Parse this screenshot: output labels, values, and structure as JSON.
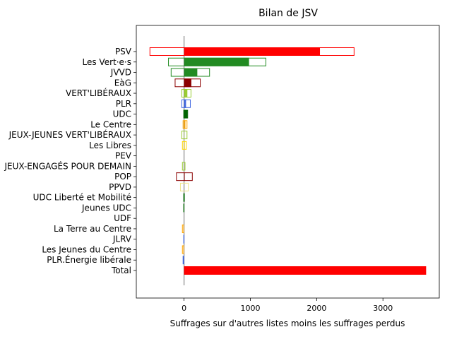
{
  "chart_data": {
    "type": "bar",
    "title": "Bilan de JSV",
    "xlabel": "Suffrages sur d'autres listes moins les suffrages perdus",
    "ylabel": "",
    "xlim": [
      -720,
      3850
    ],
    "x_ticks": [
      0,
      1000,
      2000,
      3000
    ],
    "grid": false,
    "categories": [
      {
        "name": "PSV",
        "color": "#ff0000",
        "filled": 2050,
        "outline_left": -520,
        "outline_right": 2570
      },
      {
        "name": "Les Vert·e·s",
        "color": "#228b22",
        "filled": 980,
        "outline_left": -240,
        "outline_right": 1240
      },
      {
        "name": "JVVD",
        "color": "#228b22",
        "filled": 200,
        "outline_left": -200,
        "outline_right": 390
      },
      {
        "name": "EàG",
        "color": "#8b0000",
        "filled": 110,
        "outline_left": -140,
        "outline_right": 250
      },
      {
        "name": "VERT'LIBÉRAUX",
        "color": "#9acd32",
        "filled": 50,
        "outline_left": -40,
        "outline_right": 110
      },
      {
        "name": "PLR",
        "color": "#4169e1",
        "filled": 30,
        "outline_left": -40,
        "outline_right": 100
      },
      {
        "name": "UDC",
        "color": "#006400",
        "filled": 50,
        "outline_left": -10,
        "outline_right": 60
      },
      {
        "name": "Le Centre",
        "color": "#ffa500",
        "filled": 20,
        "outline_left": -20,
        "outline_right": 50
      },
      {
        "name": "JEUX-JEUNES VERT'LIBÉRAUX",
        "color": "#9acd32",
        "filled": 5,
        "outline_left": -40,
        "outline_right": 50
      },
      {
        "name": "Les Libres",
        "color": "#ffd700",
        "filled": 10,
        "outline_left": -30,
        "outline_right": 40
      },
      {
        "name": "PEV",
        "color": "#ffd700",
        "filled": 0,
        "outline_left": 0,
        "outline_right": 0
      },
      {
        "name": "JEUX-ENGAGÉS POUR DEMAIN",
        "color": "#9acd32",
        "filled": 0,
        "outline_left": -30,
        "outline_right": 20
      },
      {
        "name": "POP",
        "color": "#8b0000",
        "filled": 10,
        "outline_left": -120,
        "outline_right": 130
      },
      {
        "name": "PPVD",
        "color": "#f0e68c",
        "filled": 0,
        "outline_left": -60,
        "outline_right": 70
      },
      {
        "name": "UDC Liberté et Mobilité",
        "color": "#006400",
        "filled": 0,
        "outline_left": -10,
        "outline_right": 10
      },
      {
        "name": "Jeunes UDC",
        "color": "#006400",
        "filled": 0,
        "outline_left": -10,
        "outline_right": 5
      },
      {
        "name": "UDF",
        "color": "#4169e1",
        "filled": 0,
        "outline_left": -5,
        "outline_right": 5
      },
      {
        "name": "La Terre au Centre",
        "color": "#ffa500",
        "filled": 0,
        "outline_left": -30,
        "outline_right": 0
      },
      {
        "name": "JLRV",
        "color": "#4169e1",
        "filled": 0,
        "outline_left": -10,
        "outline_right": 5
      },
      {
        "name": "Les Jeunes du Centre",
        "color": "#ffa500",
        "filled": 0,
        "outline_left": -30,
        "outline_right": 0
      },
      {
        "name": "PLR.Énergie libérale",
        "color": "#4169e1",
        "filled": 0,
        "outline_left": -20,
        "outline_right": 0
      },
      {
        "name": "Total",
        "color": "#ff0000",
        "filled": 3650,
        "outline_left": 0,
        "outline_right": 3650
      }
    ]
  }
}
